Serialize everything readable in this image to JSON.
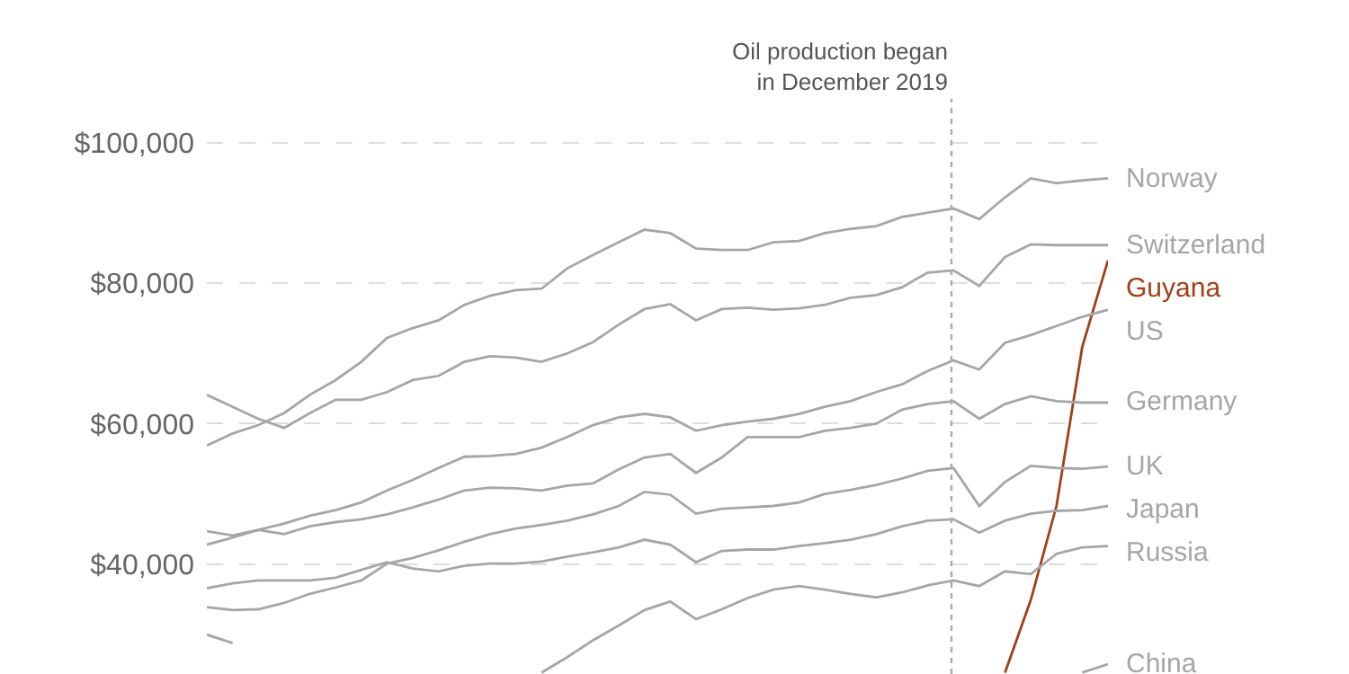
{
  "chart_data": {
    "type": "line",
    "categories": [
      null,
      null,
      null,
      null,
      null,
      null,
      null,
      null,
      null,
      null,
      null,
      null,
      null,
      null,
      null,
      null,
      null,
      null,
      null,
      null,
      null,
      null,
      null,
      null,
      null,
      null,
      null,
      null,
      null,
      null,
      null,
      null,
      null,
      null,
      null,
      null
    ],
    "ylim": [
      24400,
      106200
    ],
    "yticks": [
      {
        "value": 40000,
        "label": "$40,000"
      },
      {
        "value": 60000,
        "label": "$60,000"
      },
      {
        "value": 80000,
        "label": "$80,000"
      },
      {
        "value": 100000,
        "label": "$100,000"
      }
    ],
    "tick_labels": "y",
    "grid": "y",
    "marker": "none",
    "line_style": "solid",
    "annotations": [
      "Oil production began\nin December 2019"
    ],
    "series": [
      {
        "name": "Norway",
        "color": "#a6a6a6",
        "values": [
          56900,
          58600,
          59800,
          61500,
          64100,
          66200,
          68800,
          72200,
          73600,
          74700,
          76900,
          78200,
          79000,
          79200,
          82100,
          84000,
          85800,
          87600,
          87100,
          84900,
          84700,
          84700,
          85800,
          86000,
          87100,
          87700,
          88100,
          89400,
          90000,
          90600,
          89100,
          92200,
          94900,
          94200,
          94600,
          94900
        ]
      },
      {
        "name": "Switzerland",
        "color": "#a6a6a6",
        "values": [
          64100,
          62400,
          60700,
          59400,
          61500,
          63400,
          63400,
          64500,
          66200,
          66800,
          68800,
          69600,
          69400,
          68800,
          70000,
          71600,
          74100,
          76300,
          77000,
          74700,
          76300,
          76500,
          76200,
          76400,
          76900,
          77900,
          78300,
          79400,
          81500,
          81800,
          79600,
          83700,
          85500,
          85400,
          85400,
          85400
        ]
      },
      {
        "name": "Guyana",
        "color": "#a0401a",
        "values": [
          null,
          null,
          null,
          null,
          null,
          null,
          null,
          null,
          null,
          null,
          null,
          null,
          null,
          null,
          null,
          null,
          null,
          null,
          null,
          null,
          null,
          null,
          null,
          null,
          null,
          null,
          null,
          null,
          null,
          null,
          null,
          24600,
          34900,
          48300,
          70900,
          83200
        ]
      },
      {
        "name": "US",
        "color": "#a6a6a6",
        "values": [
          42800,
          43800,
          44900,
          45800,
          46900,
          47700,
          48800,
          50500,
          52000,
          53700,
          55300,
          55400,
          55700,
          56600,
          58100,
          59800,
          60900,
          61400,
          60900,
          59000,
          59800,
          60300,
          60700,
          61400,
          62400,
          63200,
          64500,
          65600,
          67500,
          69000,
          67700,
          71500,
          72600,
          73900,
          75200,
          76200
        ]
      },
      {
        "name": "Germany",
        "color": "#a6a6a6",
        "values": [
          44700,
          44100,
          44900,
          44300,
          45400,
          46000,
          46400,
          47100,
          48100,
          49200,
          50500,
          50900,
          50800,
          50500,
          51200,
          51500,
          53500,
          55200,
          55700,
          53000,
          55200,
          58100,
          58100,
          58100,
          59000,
          59400,
          60000,
          62000,
          62800,
          63200,
          60700,
          62800,
          63900,
          63200,
          63000,
          63000
        ]
      },
      {
        "name": "UK",
        "color": "#a6a6a6",
        "values": [
          33900,
          33500,
          33600,
          34500,
          35800,
          36700,
          37700,
          40100,
          40900,
          42000,
          43200,
          44300,
          45100,
          45600,
          46200,
          47100,
          48300,
          50300,
          49900,
          47200,
          47900,
          48100,
          48300,
          48800,
          50000,
          50600,
          51300,
          52200,
          53300,
          53700,
          48300,
          51700,
          54000,
          53700,
          53600,
          53900
        ]
      },
      {
        "name": "Japan",
        "color": "#a6a6a6",
        "values": [
          36600,
          37300,
          37700,
          37700,
          37700,
          38100,
          39200,
          40300,
          39400,
          39000,
          39800,
          40100,
          40100,
          40400,
          41100,
          41700,
          42400,
          43500,
          42800,
          40300,
          41900,
          42100,
          42100,
          42600,
          43000,
          43500,
          44300,
          45400,
          46200,
          46400,
          44500,
          46200,
          47200,
          47600,
          47700,
          48300
        ]
      },
      {
        "name": "Russia",
        "color": "#a6a6a6",
        "values": [
          30000,
          28800,
          null,
          null,
          null,
          null,
          null,
          null,
          null,
          null,
          null,
          null,
          null,
          24600,
          26800,
          29200,
          31300,
          33500,
          34700,
          32200,
          33600,
          35200,
          36400,
          36900,
          36400,
          35800,
          35300,
          36000,
          37000,
          37700,
          36900,
          39000,
          38600,
          41500,
          42400,
          42600
        ]
      },
      {
        "name": "China",
        "color": "#a6a6a6",
        "values": [
          null,
          null,
          null,
          null,
          null,
          null,
          null,
          null,
          null,
          null,
          null,
          null,
          null,
          null,
          null,
          null,
          null,
          null,
          null,
          null,
          null,
          null,
          null,
          null,
          null,
          null,
          null,
          null,
          null,
          null,
          null,
          null,
          null,
          null,
          24600,
          25800
        ]
      }
    ]
  }
}
